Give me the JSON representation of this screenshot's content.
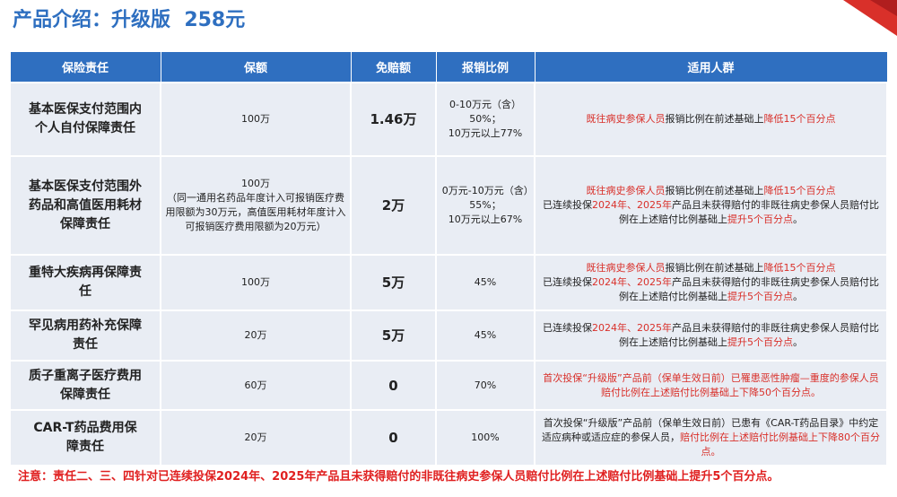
{
  "header": {
    "title": "产品介绍：升级版  258元"
  },
  "table": {
    "columns": [
      "保险责任",
      "保额",
      "免赔额",
      "报销比例",
      "适用人群"
    ],
    "rows": [
      {
        "duty": "基本医保支付范围内个人自付保障责任",
        "amount": "100万",
        "deductible": "1.46万",
        "ratio": "0-10万元（含）50%；\n10万元以上77%",
        "people": [
          [
            {
              "text": "既往病史参保人员",
              "color": "#d9302a"
            },
            {
              "text": "报销比例在前述基础上",
              "color": "#222222"
            },
            {
              "text": "降低15个百分点",
              "color": "#d9302a"
            }
          ]
        ]
      },
      {
        "duty": "基本医保支付范围外药品和高值医用耗材保障责任",
        "amount": "100万\n（同一通用名药品年度计入可报销医疗费用限额为30万元，高值医用耗材年度计入可报销医疗费用限额为20万元）",
        "deductible": "2万",
        "ratio": "0万元-10万元（含）55%；\n10万元以上67%",
        "people": [
          [
            {
              "text": "既往病史参保人员",
              "color": "#d9302a"
            },
            {
              "text": "报销比例在前述基础上",
              "color": "#222222"
            },
            {
              "text": "降低15个百分点",
              "color": "#d9302a"
            }
          ],
          [
            {
              "text": "已连续投保",
              "color": "#222222"
            },
            {
              "text": "2024年、2025年",
              "color": "#d9302a"
            },
            {
              "text": "产品且未获得赔付的非既往病史参保人员赔付比例在上述赔付比例基础上",
              "color": "#222222"
            },
            {
              "text": "提升5个百分点",
              "color": "#d9302a"
            },
            {
              "text": "。",
              "color": "#222222"
            }
          ]
        ]
      },
      {
        "duty": "重特大疾病再保障责任",
        "amount": "100万",
        "deductible": "5万",
        "ratio": "45%",
        "people": [
          [
            {
              "text": "既往病史参保人员",
              "color": "#d9302a"
            },
            {
              "text": "报销比例在前述基础上",
              "color": "#222222"
            },
            {
              "text": "降低15个百分点",
              "color": "#d9302a"
            }
          ],
          [
            {
              "text": "已连续投保",
              "color": "#222222"
            },
            {
              "text": "2024年、2025年",
              "color": "#d9302a"
            },
            {
              "text": "产品且未获得赔付的非既往病史参保人员赔付比例在上述赔付比例基础上",
              "color": "#222222"
            },
            {
              "text": "提升5个百分点",
              "color": "#d9302a"
            },
            {
              "text": "。",
              "color": "#222222"
            }
          ]
        ]
      },
      {
        "duty": "罕见病用药补充保障责任",
        "amount": "20万",
        "deductible": "5万",
        "ratio": "45%",
        "people": [
          [
            {
              "text": "已连续投保",
              "color": "#222222"
            },
            {
              "text": "2024年、2025年",
              "color": "#d9302a"
            },
            {
              "text": "产品且未获得赔付的非既往病史参保人员赔付比例在上述赔付比例基础上",
              "color": "#222222"
            },
            {
              "text": "提升5个百分点",
              "color": "#d9302a"
            },
            {
              "text": "。",
              "color": "#222222"
            }
          ]
        ]
      },
      {
        "duty": "质子重离子医疗费用保障责任",
        "amount": "60万",
        "deductible": "0",
        "ratio": "70%",
        "people": [
          [
            {
              "text": "首次投保“升级版”产品前（保单生效日前）已罹患恶性肿瘤—重度的参保人员赔付比例在上述赔付比例基础上下降50个百分点。",
              "color": "#d9302a"
            }
          ]
        ]
      },
      {
        "duty": "CAR-T药品费用保障责任",
        "amount": "20万",
        "deductible": "0",
        "ratio": "100%",
        "people": [
          [
            {
              "text": "首次投保“升级版”产品前（保单生效日前）已患有《CAR-T药品目录》中约定适应病种或适应症的参保人员，",
              "color": "#222222"
            },
            {
              "text": "赔付比例在上述赔付比例基础上下降80个百分点。",
              "color": "#d9302a"
            }
          ]
        ]
      }
    ]
  },
  "note": "注意：责任二、三、四针对已连续投保2024年、2025年产品且未获得赔付的非既往病史参保人员赔付比例在上述赔付比例基础上提升5个百分点。"
}
